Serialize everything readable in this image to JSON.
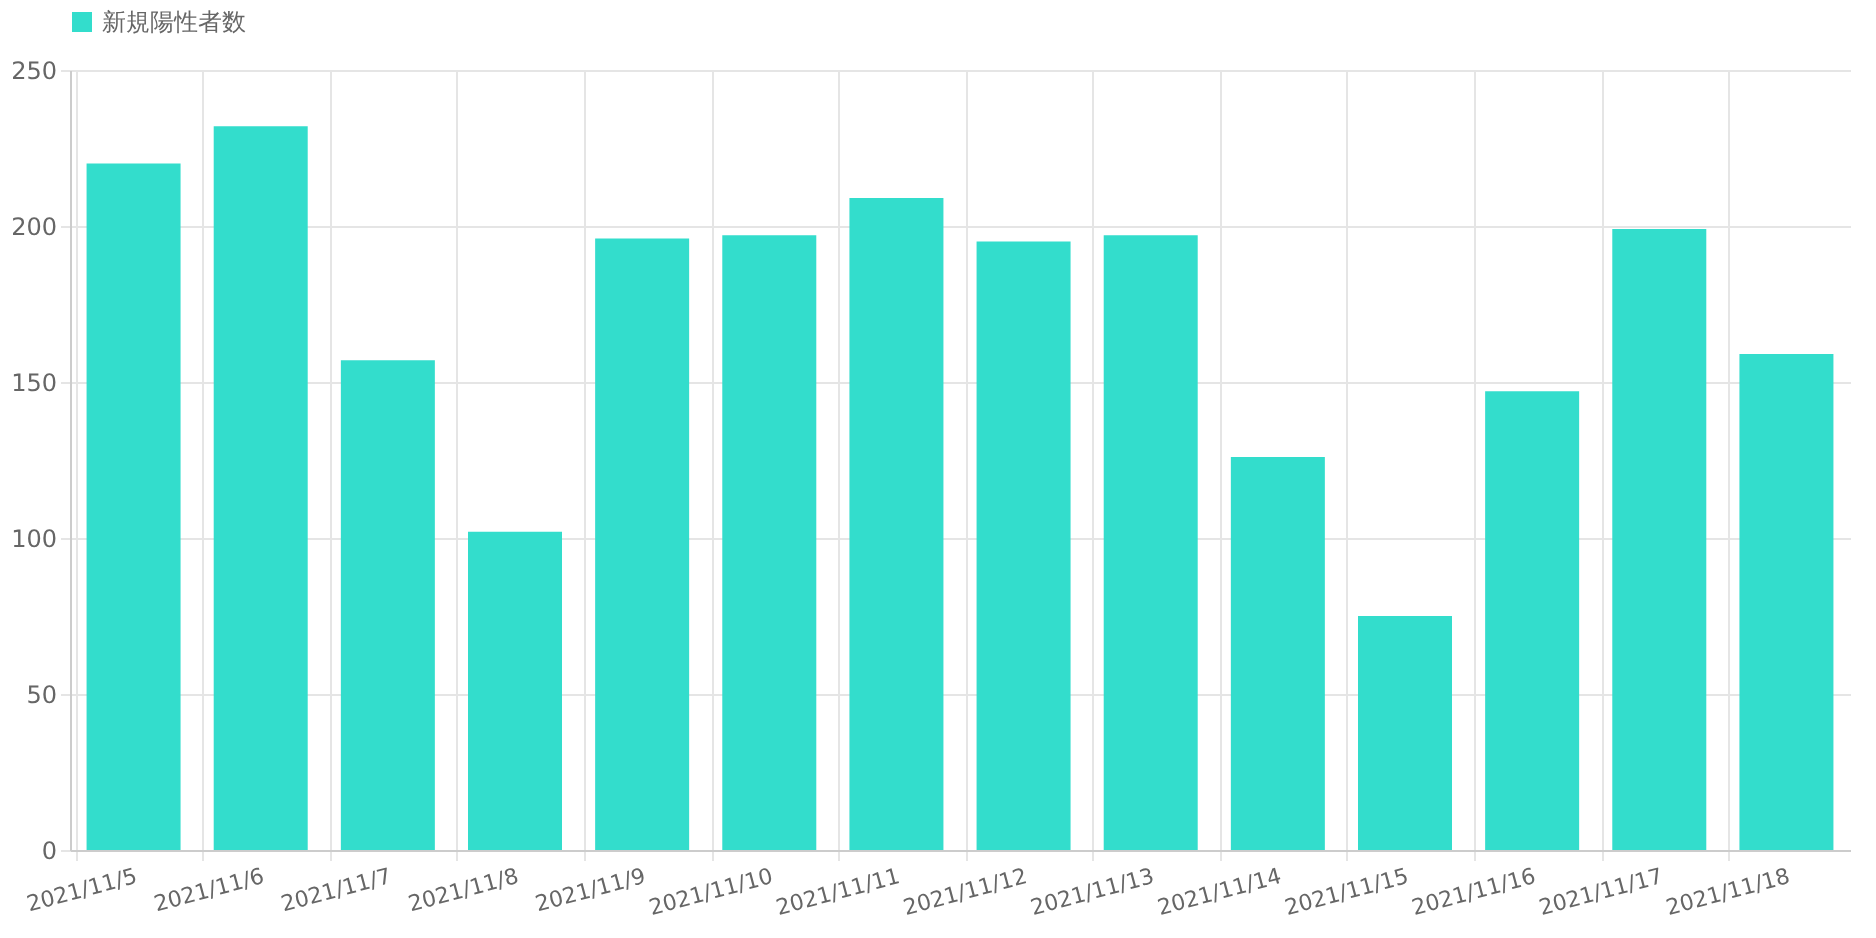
{
  "chart_data": {
    "type": "bar",
    "categories": [
      "2021/11/5",
      "2021/11/6",
      "2021/11/7",
      "2021/11/8",
      "2021/11/9",
      "2021/11/10",
      "2021/11/11",
      "2021/11/12",
      "2021/11/13",
      "2021/11/14",
      "2021/11/15",
      "2021/11/16",
      "2021/11/17",
      "2021/11/18"
    ],
    "series": [
      {
        "name": "新規陽性者数",
        "color": "#33ddcc",
        "values": [
          220,
          232,
          157,
          102,
          196,
          197,
          209,
          195,
          197,
          126,
          75,
          147,
          199,
          159
        ]
      }
    ],
    "ylim": [
      0,
      250
    ],
    "yticks": [
      0,
      50,
      100,
      150,
      200,
      250
    ],
    "grid": true,
    "legend": "top"
  }
}
